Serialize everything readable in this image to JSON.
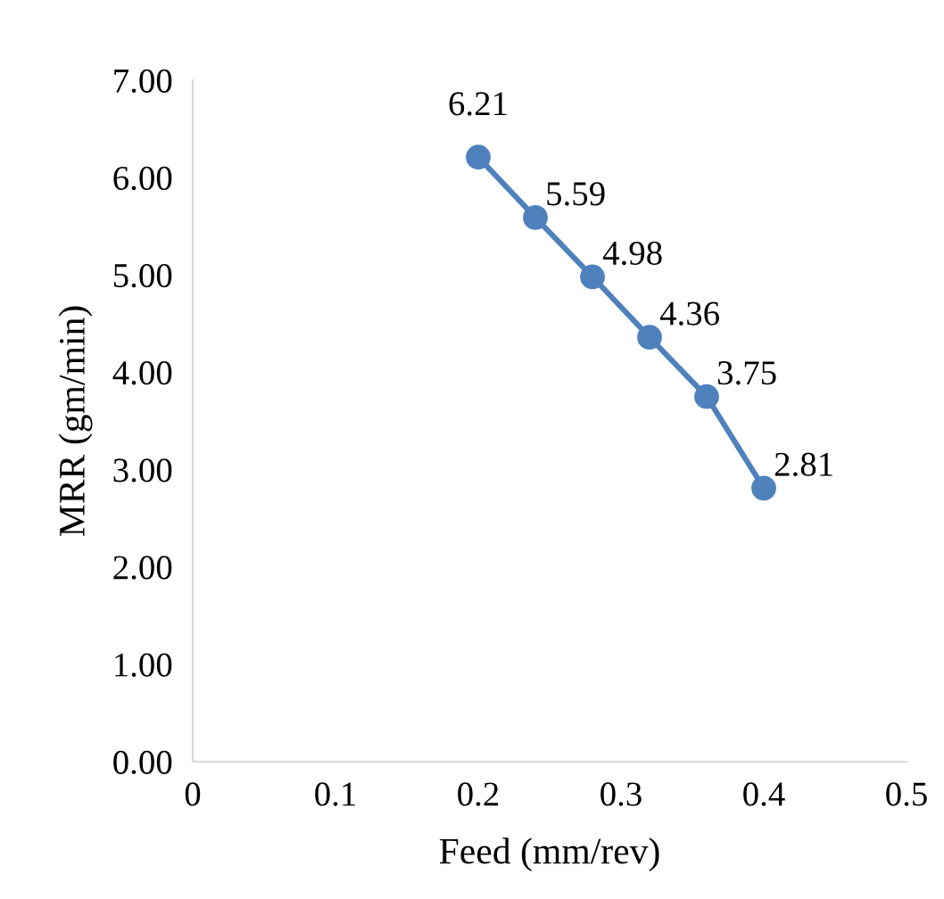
{
  "chart_data": {
    "type": "line",
    "xlabel": "Feed (mm/rev)",
    "ylabel": "MRR (gm/min)",
    "x": [
      0.2,
      0.24,
      0.28,
      0.32,
      0.36,
      0.4
    ],
    "series": [
      {
        "color": "#4f81bd",
        "values": [
          6.21,
          5.59,
          4.98,
          4.36,
          3.75,
          2.81
        ]
      }
    ],
    "value_labels": [
      "6.21",
      "5.59",
      "4.98",
      "4.36",
      "3.75",
      "2.81"
    ],
    "marker": "circle",
    "line_style": "solid",
    "grid": false,
    "legend": false,
    "xlim": [
      0,
      0.5
    ],
    "xticks": [
      0,
      0.1,
      0.2,
      0.3,
      0.4,
      0.5
    ],
    "ylim": [
      0,
      7
    ],
    "yticks": [
      {
        "value": 0,
        "label": "0.00"
      },
      {
        "value": 1,
        "label": "1.00"
      },
      {
        "value": 2,
        "label": "2.00"
      },
      {
        "value": 3,
        "label": "3.00"
      },
      {
        "value": 4,
        "label": "4.00"
      },
      {
        "value": 5,
        "label": "5.00"
      },
      {
        "value": 6,
        "label": "6.00"
      },
      {
        "value": 7,
        "label": "7.00"
      }
    ]
  }
}
